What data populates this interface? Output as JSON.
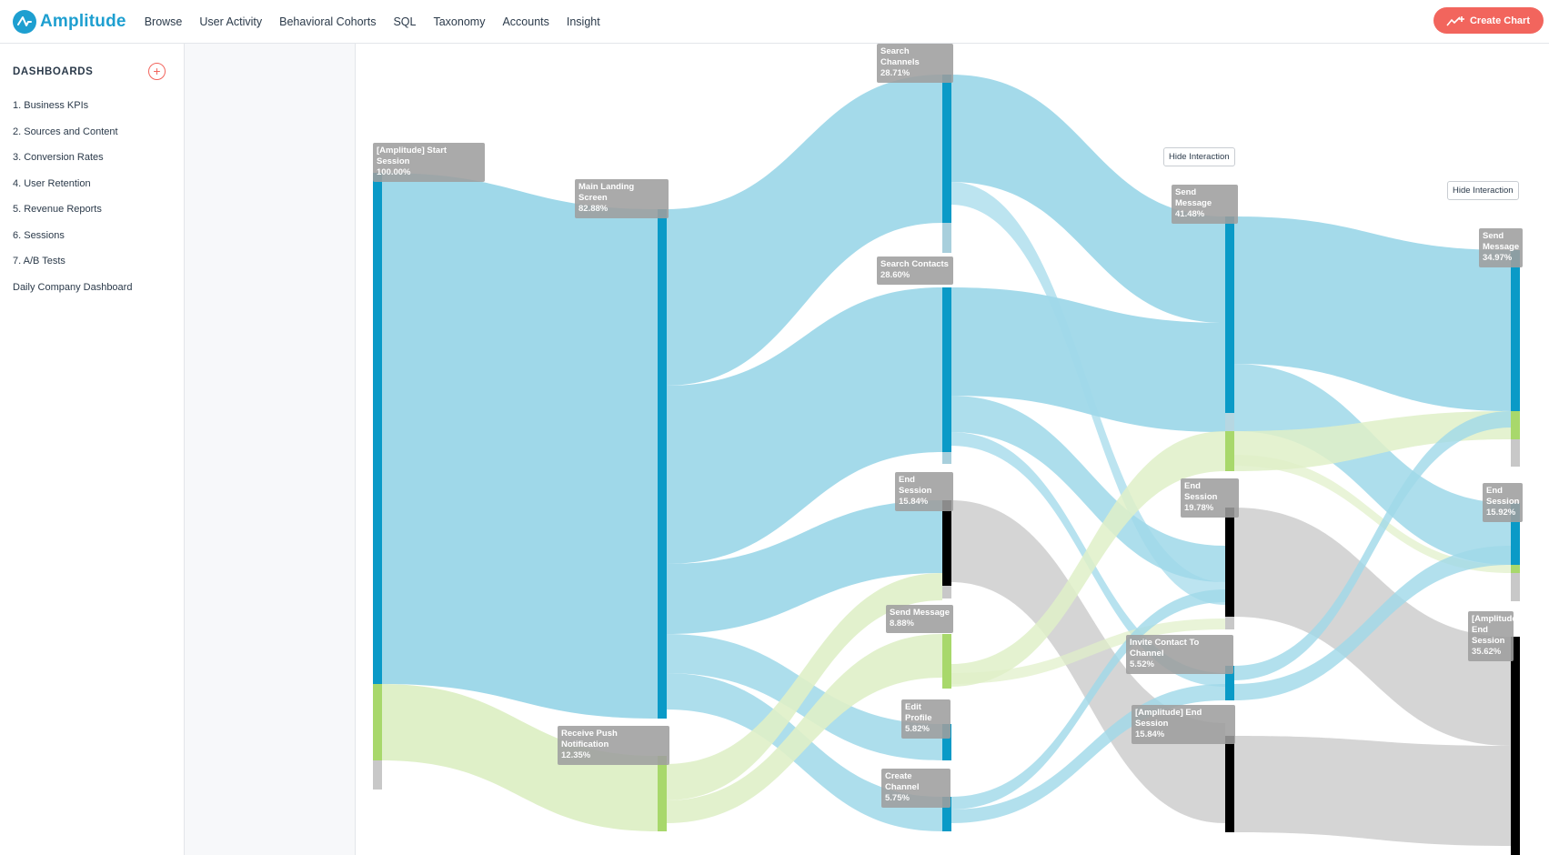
{
  "app": {
    "name": "Amplitude"
  },
  "nav": {
    "items": [
      "Browse",
      "User Activity",
      "Behavioral Cohorts",
      "SQL",
      "Taxonomy",
      "Accounts",
      "Insight"
    ],
    "create_label": "Create Chart"
  },
  "sidebar": {
    "heading": "DASHBOARDS",
    "items": [
      "1. Business KPIs",
      "2. Sources and Content",
      "3. Conversion Rates",
      "4. User Retention",
      "5. Revenue Reports",
      "6. Sessions",
      "7. A/B Tests",
      "Daily Company Dashboard"
    ]
  },
  "hide_interaction_label": "Hide Interaction",
  "colors": {
    "accent": "#1e9fd0",
    "create": "#f2655d",
    "flow_blue": "#9fd8e9",
    "node_blue": "#0a9ac7",
    "flow_green": "#dff0c8",
    "node_green": "#a8d86b",
    "flow_gray": "#d3d3d3",
    "node_black": "#000000"
  },
  "chart_data": {
    "type": "sankey",
    "nodes": [
      {
        "step": 1,
        "name": "[Amplitude] Start Session",
        "pct": "100.00%"
      },
      {
        "step": 2,
        "name": "Main Landing Screen",
        "pct": "82.88%"
      },
      {
        "step": 2,
        "name": "Receive Push Notification",
        "pct": "12.35%"
      },
      {
        "step": 3,
        "name": "Search Channels",
        "pct": "28.71%"
      },
      {
        "step": 3,
        "name": "Search Contacts",
        "pct": "28.60%"
      },
      {
        "step": 3,
        "name": "End Session",
        "pct": "15.84%"
      },
      {
        "step": 3,
        "name": "Send Message",
        "pct": "8.88%"
      },
      {
        "step": 3,
        "name": "Edit Profile",
        "pct": "5.82%"
      },
      {
        "step": 3,
        "name": "Create Channel",
        "pct": "5.75%"
      },
      {
        "step": 4,
        "name": "Send Message",
        "pct": "41.48%"
      },
      {
        "step": 4,
        "name": "End Session",
        "pct": "19.78%"
      },
      {
        "step": 4,
        "name": "Invite Contact To Channel",
        "pct": "5.52%"
      },
      {
        "step": 4,
        "name": "[Amplitude] End Session",
        "pct": "15.84%"
      },
      {
        "step": 5,
        "name": "Send Message",
        "pct": "34.97%"
      },
      {
        "step": 5,
        "name": "End Session",
        "pct": "15.92%"
      },
      {
        "step": 5,
        "name": "[Amplitude] End Session",
        "pct": "35.62%"
      }
    ]
  }
}
